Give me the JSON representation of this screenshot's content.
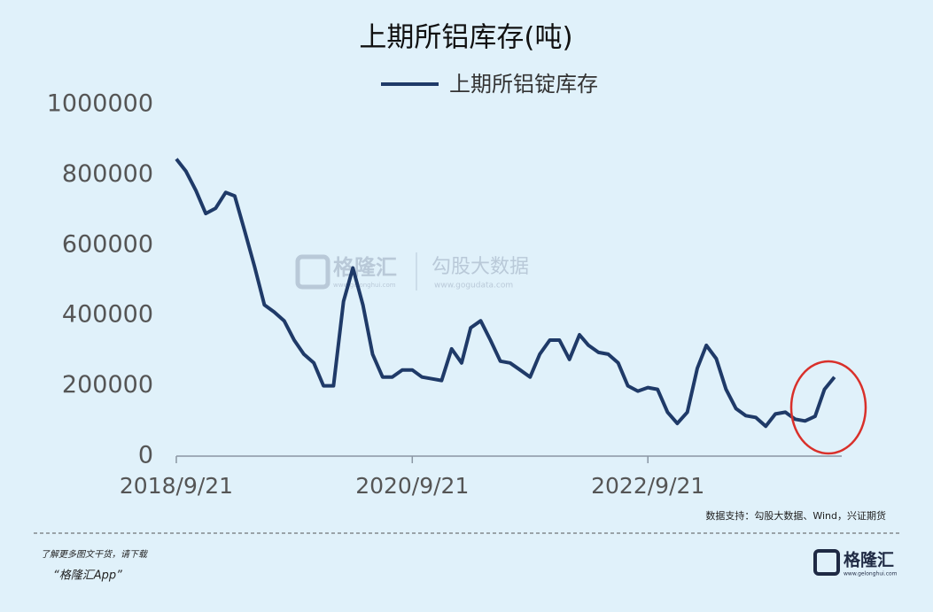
{
  "chart_data": {
    "type": "line",
    "title": "上期所铝库存(吨)",
    "x": [
      "2018/9/21",
      "2018/10/21",
      "2018/11/21",
      "2018/12/21",
      "2019/1/21",
      "2019/2/21",
      "2019/3/21",
      "2019/4/21",
      "2019/5/21",
      "2019/6/21",
      "2019/7/21",
      "2019/8/21",
      "2019/9/21",
      "2019/10/21",
      "2019/11/21",
      "2019/12/21",
      "2020/1/21",
      "2020/2/21",
      "2020/3/21",
      "2020/4/21",
      "2020/5/21",
      "2020/6/21",
      "2020/7/21",
      "2020/8/21",
      "2020/9/21",
      "2020/10/21",
      "2020/11/21",
      "2020/12/21",
      "2021/1/21",
      "2021/2/21",
      "2021/3/21",
      "2021/4/21",
      "2021/5/21",
      "2021/6/21",
      "2021/7/21",
      "2021/8/21",
      "2021/9/21",
      "2021/10/21",
      "2021/11/21",
      "2021/12/21",
      "2022/1/21",
      "2022/2/21",
      "2022/3/21",
      "2022/4/21",
      "2022/5/21",
      "2022/6/21",
      "2022/7/21",
      "2022/8/21",
      "2022/9/21",
      "2022/10/21",
      "2022/11/21",
      "2022/12/21",
      "2023/1/21",
      "2023/2/21",
      "2023/3/21",
      "2023/4/21",
      "2023/5/21",
      "2023/6/21",
      "2023/7/21",
      "2023/8/21",
      "2023/9/21",
      "2023/10/21",
      "2023/11/21",
      "2023/12/21",
      "2024/1/21",
      "2024/2/21",
      "2024/3/21",
      "2024/4/21"
    ],
    "series": [
      {
        "name": "上期所铝锭库存",
        "color": "#1f3a68",
        "values": [
          845000,
          810000,
          755000,
          690000,
          705000,
          750000,
          740000,
          640000,
          540000,
          430000,
          410000,
          385000,
          330000,
          290000,
          265000,
          200000,
          200000,
          440000,
          535000,
          430000,
          290000,
          225000,
          225000,
          245000,
          245000,
          225000,
          220000,
          215000,
          305000,
          265000,
          365000,
          385000,
          330000,
          270000,
          265000,
          245000,
          225000,
          290000,
          330000,
          330000,
          275000,
          345000,
          315000,
          295000,
          290000,
          265000,
          200000,
          185000,
          195000,
          190000,
          125000,
          93000,
          125000,
          250000,
          315000,
          277000,
          190000,
          135000,
          115000,
          110000,
          85000,
          120000,
          125000,
          105000,
          100000,
          113000,
          190000,
          225000
        ]
      }
    ],
    "xlim": [
      "2018/9/21",
      "2024/6/21"
    ],
    "xticks": [
      "2018/9/21",
      "2020/9/21",
      "2022/9/21"
    ],
    "ylim": [
      0,
      1000000
    ],
    "yticks": [
      0,
      200000,
      400000,
      600000,
      800000,
      1000000
    ],
    "source": "数据支持：勾股大数据、Wind，兴证期货"
  },
  "watermark": {
    "brand": "格隆汇",
    "brand_url": "www.gelonghui.com",
    "partner": "勾股大数据",
    "partner_url": "www.gogudata.com"
  },
  "footer": {
    "note": "了解更多图文干货，请下载",
    "app": "“格隆汇App”",
    "logo": "格隆汇",
    "logo_url": "www.gelonghui.com"
  }
}
